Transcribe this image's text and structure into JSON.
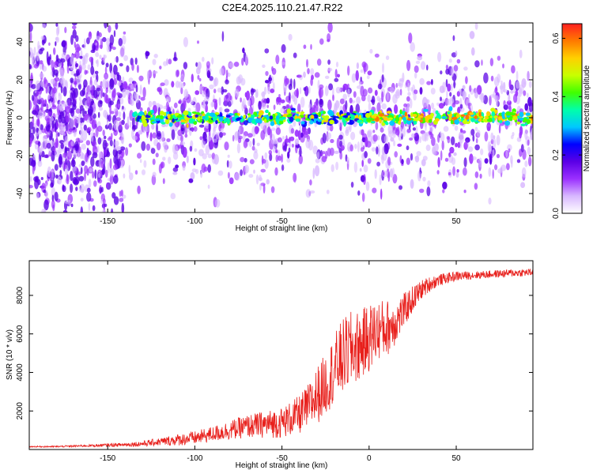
{
  "title": "C2E4.2025.110.21.47.R22",
  "chart_data": [
    {
      "type": "heatmap",
      "xlabel": "Height of straight line (km)",
      "ylabel": "Frequency (Hz)",
      "xlim": [
        -195,
        94
      ],
      "ylim": [
        -50,
        50
      ],
      "x_ticks": [
        -150,
        -100,
        -50,
        0,
        50
      ],
      "y_ticks": [
        -40,
        -20,
        0,
        20,
        40
      ],
      "colorbar": {
        "label": "Normalized spectral amplitude",
        "range": [
          0,
          0.65
        ],
        "ticks": [
          0.0,
          0.2,
          0.4,
          0.6
        ],
        "tick_labels": [
          "0.0",
          "0.2",
          "0.4",
          "0.6"
        ],
        "colors": [
          "#ffffff",
          "#d8b8ff",
          "#9b30ff",
          "#5a00e6",
          "#0000ff",
          "#00c8ff",
          "#00ffaa",
          "#40ff00",
          "#c8ff00",
          "#ffd000",
          "#ff7a00",
          "#ff2020"
        ]
      },
      "description_bands": [
        {
          "x_from": -195,
          "x_to": -140,
          "y_spread": 50,
          "intensity": 0.12
        },
        {
          "x_from": -140,
          "x_to": 94,
          "y_spread": 32,
          "intensity": 0.1
        },
        {
          "x_from": -135,
          "x_to": 94,
          "y_spread": 3,
          "intensity": 0.35
        }
      ]
    },
    {
      "type": "line",
      "xlabel": "Height of straight line (km)",
      "ylabel": "SNR (10 * v/v)",
      "xlim": [
        -195,
        94
      ],
      "ylim": [
        0,
        9800
      ],
      "x_ticks": [
        -150,
        -100,
        -50,
        0,
        50
      ],
      "y_ticks": [
        2000,
        4000,
        6000,
        8000
      ],
      "color": "#e8201c",
      "series": [
        {
          "x": [
            -195,
            -180,
            -160,
            -140,
            -130,
            -120,
            -110,
            -100,
            -90,
            -80,
            -70,
            -60,
            -50,
            -45,
            -40,
            -35,
            -30,
            -25,
            -20,
            -15,
            -10,
            -5,
            0,
            5,
            10,
            15,
            20,
            25,
            30,
            35,
            40,
            50,
            60,
            70,
            80,
            94
          ],
          "y": [
            150,
            150,
            200,
            250,
            300,
            400,
            500,
            600,
            800,
            1000,
            1200,
            1300,
            1400,
            1600,
            1800,
            2200,
            2800,
            3400,
            4200,
            4800,
            5200,
            5400,
            5800,
            6200,
            6300,
            6600,
            7200,
            7800,
            8300,
            8600,
            8800,
            9000,
            9050,
            9100,
            9150,
            9200
          ],
          "noise": [
            30,
            40,
            60,
            100,
            150,
            200,
            300,
            350,
            400,
            500,
            600,
            700,
            800,
            900,
            1000,
            1200,
            1500,
            1600,
            1800,
            2000,
            2000,
            1800,
            1800,
            1600,
            1500,
            1200,
            900,
            700,
            500,
            400,
            300,
            250,
            200,
            200,
            200,
            200
          ]
        }
      ]
    }
  ]
}
